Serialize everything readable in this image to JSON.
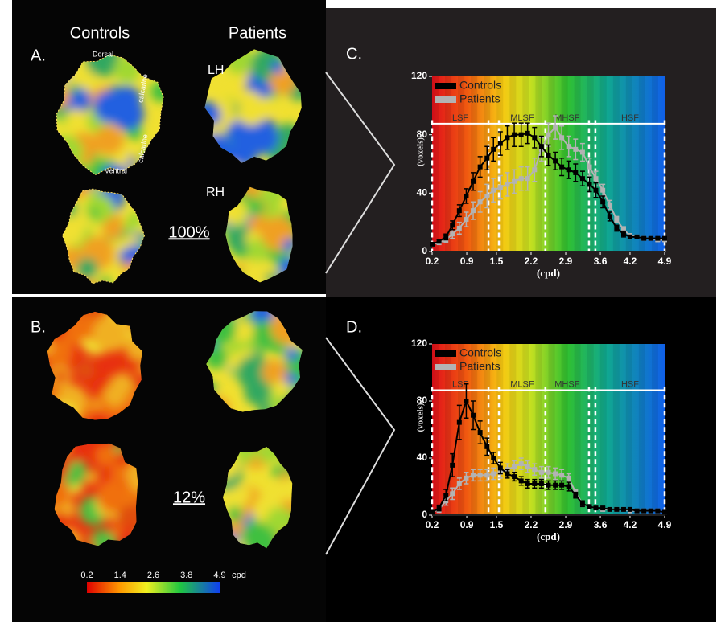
{
  "column_titles": [
    "Controls",
    "Patients"
  ],
  "panel_labels": [
    "A.",
    "B.",
    "C.",
    "D."
  ],
  "hemisphere_labels": [
    "LH",
    "RH"
  ],
  "orientation_labels": [
    "Dorsal",
    "calcarine",
    "calcarine",
    "Ventral"
  ],
  "percent_labels": [
    "100%",
    "12%"
  ],
  "colorbar": {
    "ticks": [
      0.2,
      1.4,
      2.6,
      3.8,
      4.9
    ],
    "unit": "cpd"
  },
  "chart_data": [
    {
      "type": "line",
      "x_label": "(cpd)",
      "y_label": "(voxels)",
      "x": [
        0.2,
        0.34,
        0.48,
        0.61,
        0.75,
        0.89,
        1.03,
        1.17,
        1.31,
        1.44,
        1.58,
        1.72,
        1.86,
        2.0,
        2.13,
        2.27,
        2.41,
        2.55,
        2.69,
        2.82,
        2.96,
        3.1,
        3.24,
        3.38,
        3.51,
        3.65,
        3.79,
        3.93,
        4.07,
        4.2,
        4.34,
        4.48,
        4.62,
        4.76,
        4.9
      ],
      "xlim": [
        0.2,
        4.9
      ],
      "xticks": [
        0.2,
        0.9,
        1.5,
        2.2,
        2.9,
        3.6,
        4.2,
        4.9
      ],
      "ylim": [
        0,
        120
      ],
      "yticks": [
        0,
        40,
        80,
        120
      ],
      "legend": "top-left",
      "bands": [
        {
          "label": "LSF",
          "from": 0.2,
          "to": 1.34
        },
        {
          "label": "MLSF",
          "from": 1.55,
          "to": 2.49
        },
        {
          "label": "MHSF",
          "from": 2.49,
          "to": 3.37
        },
        {
          "label": "HSF",
          "from": 3.5,
          "to": 4.9
        }
      ],
      "series": [
        {
          "name": "Controls",
          "color": "#000000",
          "values": [
            5,
            7,
            10,
            18,
            28,
            38,
            48,
            58,
            64,
            70,
            74,
            78,
            80,
            80,
            81,
            78,
            72,
            66,
            62,
            58,
            56,
            54,
            50,
            46,
            42,
            34,
            24,
            16,
            12,
            10,
            10,
            9,
            9,
            9,
            9
          ],
          "errors": [
            1,
            1,
            2,
            3,
            4,
            5,
            6,
            7,
            8,
            8,
            8,
            8,
            8,
            8,
            7,
            7,
            7,
            7,
            6,
            6,
            6,
            6,
            5,
            5,
            5,
            4,
            3,
            2,
            2,
            1,
            1,
            1,
            1,
            1,
            1
          ]
        },
        {
          "name": "Patients",
          "color": "#b3b3b3",
          "values": [
            5,
            6,
            8,
            12,
            16,
            22,
            28,
            34,
            38,
            42,
            44,
            46,
            48,
            50,
            50,
            56,
            70,
            80,
            85,
            78,
            72,
            70,
            68,
            58,
            50,
            42,
            32,
            22,
            15,
            11,
            10,
            9,
            9,
            8,
            8
          ],
          "errors": [
            1,
            1,
            2,
            3,
            4,
            5,
            6,
            7,
            8,
            8,
            8,
            8,
            8,
            8,
            8,
            8,
            8,
            8,
            8,
            8,
            7,
            7,
            6,
            6,
            5,
            4,
            3,
            2,
            2,
            1,
            1,
            1,
            1,
            1,
            1
          ]
        }
      ]
    },
    {
      "type": "line",
      "x_label": "(cpd)",
      "y_label": "(voxels)",
      "x": [
        0.2,
        0.34,
        0.48,
        0.61,
        0.75,
        0.89,
        1.03,
        1.17,
        1.31,
        1.44,
        1.58,
        1.72,
        1.86,
        2.0,
        2.13,
        2.27,
        2.41,
        2.55,
        2.69,
        2.82,
        2.96,
        3.1,
        3.24,
        3.38,
        3.51,
        3.65,
        3.79,
        3.93,
        4.07,
        4.2,
        4.34,
        4.48,
        4.62,
        4.76,
        4.9
      ],
      "xlim": [
        0.2,
        4.9
      ],
      "xticks": [
        0.2,
        0.9,
        1.5,
        2.2,
        2.9,
        3.6,
        4.2,
        4.9
      ],
      "ylim": [
        0,
        120
      ],
      "yticks": [
        0,
        40,
        80,
        120
      ],
      "legend": "top-left",
      "bands": [
        {
          "label": "LSF",
          "from": 0.2,
          "to": 1.34
        },
        {
          "label": "MLSF",
          "from": 1.55,
          "to": 2.49
        },
        {
          "label": "MHSF",
          "from": 2.49,
          "to": 3.37
        },
        {
          "label": "HSF",
          "from": 3.5,
          "to": 4.9
        }
      ],
      "series": [
        {
          "name": "Controls",
          "color": "#000000",
          "values": [
            2,
            5,
            14,
            35,
            65,
            80,
            70,
            58,
            48,
            40,
            33,
            29,
            27,
            24,
            22,
            22,
            22,
            21,
            21,
            21,
            20,
            14,
            8,
            6,
            5,
            5,
            4,
            4,
            4,
            4,
            3,
            3,
            3,
            3,
            2
          ],
          "errors": [
            1,
            2,
            4,
            8,
            12,
            12,
            10,
            8,
            6,
            4,
            4,
            3,
            3,
            3,
            3,
            3,
            3,
            3,
            3,
            3,
            3,
            2,
            2,
            1,
            1,
            1,
            1,
            1,
            1,
            1,
            1,
            1,
            1,
            1,
            1
          ]
        },
        {
          "name": "Patients",
          "color": "#b3b3b3",
          "values": [
            2,
            4,
            10,
            15,
            22,
            26,
            28,
            28,
            28,
            29,
            30,
            32,
            34,
            36,
            34,
            32,
            30,
            30,
            29,
            28,
            26,
            16,
            8,
            6,
            5,
            4,
            4,
            4,
            4,
            3,
            3,
            3,
            3,
            3,
            2
          ],
          "errors": [
            1,
            2,
            3,
            4,
            4,
            4,
            4,
            4,
            4,
            4,
            4,
            4,
            4,
            4,
            4,
            4,
            4,
            4,
            4,
            4,
            3,
            2,
            2,
            1,
            1,
            1,
            1,
            1,
            1,
            1,
            1,
            1,
            1,
            1,
            1
          ]
        }
      ]
    }
  ]
}
